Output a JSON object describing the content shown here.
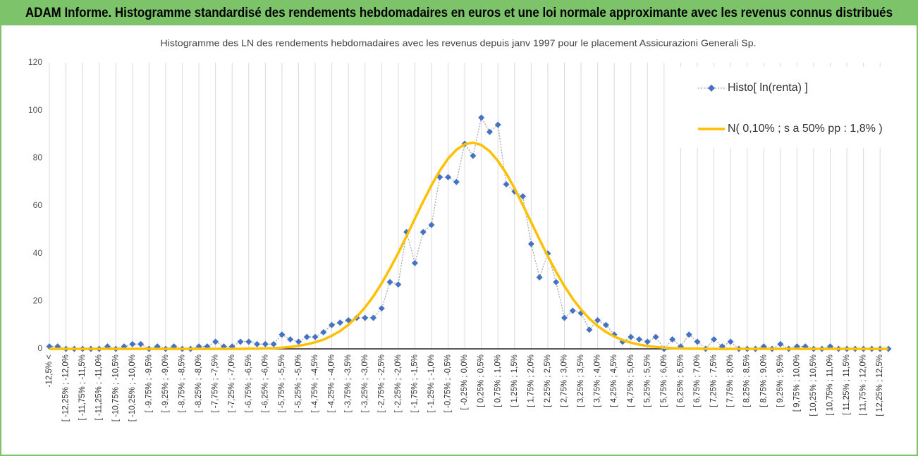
{
  "chart_data": {
    "type": "line",
    "banner": "ADAM Informe. Histogramme standardisé des rendements hebdomadaires en euros et une loi normale approximante avec les revenus connus distribués",
    "title": "Histogramme des LN des rendements hebdomadaires avec les revenus depuis janv 1997 pour le placement Assicurazioni Generali Sp.",
    "categories": [
      "-12,5% <",
      null,
      "[ -12,25% ; -12,0%",
      null,
      "[ -11,75% ; -11,5%",
      null,
      "[ -11,25% ; -11,0%",
      null,
      "[ -10,75% ; -10,5%",
      null,
      "[ -10,25% ; -10,0%",
      null,
      "[ -9,75% ; -9,5%",
      null,
      "[ -9,25% ; -9,0%",
      null,
      "[ -8,75% ; -8,5%",
      null,
      "[ -8,25% ; -8,0%",
      null,
      "[ -7,75% ; -7,5%",
      null,
      "[ -7,25% ; -7,0%",
      null,
      "[ -6,75% ; -6,5%",
      null,
      "[ -6,25% ; -6,0%",
      null,
      "[ -5,75% ; -5,5%",
      null,
      "[ -5,25% ; -5,0%",
      null,
      "[ -4,75% ; -4,5%",
      null,
      "[ -4,25% ; -4,0%",
      null,
      "[ -3,75% ; -3,5%",
      null,
      "[ -3,25% ; -3,0%",
      null,
      "[ -2,75% ; -2,5%",
      null,
      "[ -2,25% ; -2,0%",
      null,
      "[ -1,75% ; -1,5%",
      null,
      "[ -1,25% ; -1,0%",
      null,
      "[ -0,75% ; -0,5%",
      null,
      "[ -0,25% ; 0,0%",
      null,
      "[ 0,25% ; 0,5%",
      null,
      "[ 0,75% ; 1,0%",
      null,
      "[ 1,25% ; 1,5%",
      null,
      "[ 1,75% ; 2,0%",
      null,
      "[ 2,25% ; 2,5%",
      null,
      "[ 2,75% ; 3,0%",
      null,
      "[ 3,25% ; 3,5%",
      null,
      "[ 3,75% ; 4,0%",
      null,
      "[ 4,25% ; 4,5%",
      null,
      "[ 4,75% ; 5,0%",
      null,
      "[ 5,25% ; 5,5%",
      null,
      "[ 5,75% ; 6,0%",
      null,
      "[ 6,25% ; 6,5%",
      null,
      "[ 6,75% ; 7,0%",
      null,
      "[ 7,25% ; 7,5%",
      null,
      "[ 7,75% ; 8,0%",
      null,
      "[ 8,25% ; 8,5%",
      null,
      "[ 8,75% ; 9,0%",
      null,
      "[ 9,25% ; 9,5%",
      null,
      "[ 9,75% ; 10,0%",
      null,
      "[ 10,25% ; 10,5%",
      null,
      "[ 10,75% ; 11,0%",
      null,
      "[ 11,25% ; 11,5%",
      null,
      "[ 11,75% ; 12,0%",
      null,
      "[ 12,25% ; 12,5%",
      null
    ],
    "series": [
      {
        "name": "Histo[ ln(renta) ]",
        "color": "#4472c4",
        "values": [
          1,
          1,
          0,
          0,
          0,
          0,
          0,
          1,
          0,
          1,
          2,
          2,
          0,
          1,
          0,
          1,
          0,
          0,
          1,
          1,
          3,
          1,
          1,
          3,
          3,
          2,
          2,
          2,
          6,
          4,
          3,
          5,
          5,
          7,
          10,
          11,
          12,
          13,
          13,
          13,
          17,
          28,
          27,
          49,
          36,
          49,
          52,
          72,
          72,
          70,
          86,
          81,
          97,
          91,
          94,
          69,
          66,
          64,
          44,
          30,
          40,
          28,
          13,
          16,
          15,
          8,
          12,
          10,
          6,
          3,
          5,
          4,
          3,
          5,
          0,
          4,
          1,
          6,
          3,
          0,
          4,
          1,
          3,
          0,
          0,
          0,
          1,
          0,
          2,
          0,
          1,
          1,
          0,
          0,
          1,
          0,
          0,
          0,
          0,
          0,
          0,
          0
        ]
      },
      {
        "name": "N( 0,10% ; s a 50% pp : 1,8% )",
        "color": "#ffc000",
        "values": [
          0,
          0,
          0,
          0,
          0,
          0,
          0,
          0,
          0,
          0,
          0,
          0,
          0,
          0,
          0,
          0,
          0,
          0,
          0,
          0,
          0,
          0,
          0,
          0,
          0.1,
          0.1,
          0.2,
          0.3,
          0.5,
          0.8,
          1.3,
          1.9,
          2.8,
          3.9,
          5.5,
          7.5,
          10.1,
          13.4,
          17.4,
          22.0,
          27.5,
          33.6,
          40.2,
          47.3,
          54.6,
          61.8,
          68.6,
          74.7,
          79.8,
          83.5,
          85.8,
          86.5,
          85.5,
          82.9,
          78.8,
          73.6,
          67.3,
          60.3,
          53.1,
          45.9,
          38.9,
          32.3,
          26.3,
          21.0,
          16.5,
          12.7,
          9.6,
          7.1,
          5.2,
          3.7,
          2.6,
          1.8,
          1.2,
          0.8,
          0.5,
          0.3,
          0.2,
          0.1,
          0.1,
          0,
          0,
          0,
          0,
          0,
          0,
          0,
          0,
          0,
          0,
          0,
          0,
          0,
          0,
          0,
          0,
          0,
          0,
          0,
          0,
          0,
          0,
          0
        ]
      }
    ],
    "ylim": [
      0,
      120
    ],
    "yticks": [
      0,
      20,
      40,
      60,
      80,
      100,
      120
    ],
    "grid": "x",
    "legend": "top-right"
  }
}
